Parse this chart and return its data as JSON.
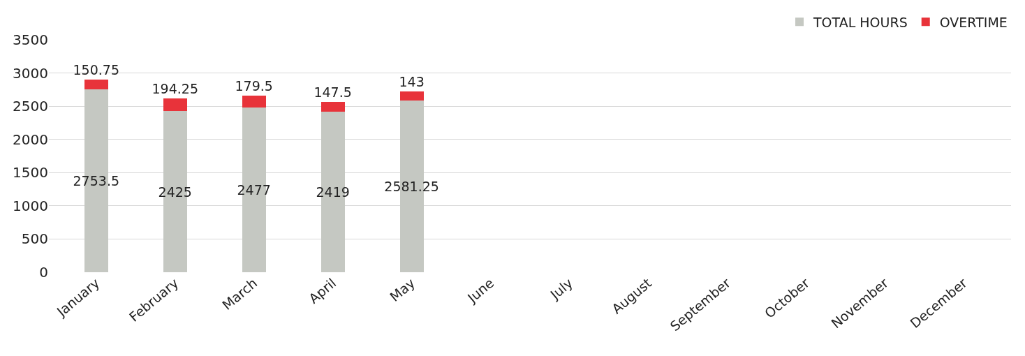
{
  "chart_data": {
    "type": "bar",
    "stacked": true,
    "categories": [
      "January",
      "February",
      "March",
      "April",
      "May",
      "June",
      "July",
      "August",
      "September",
      "October",
      "November",
      "December"
    ],
    "series": [
      {
        "name": "TOTAL HOURS",
        "color": "#c5c8c2",
        "values": [
          2753.5,
          2425,
          2477,
          2419,
          2581.25,
          null,
          null,
          null,
          null,
          null,
          null,
          null
        ]
      },
      {
        "name": "OVERTIME",
        "color": "#e8333a",
        "values": [
          150.75,
          194.25,
          179.5,
          147.5,
          143,
          null,
          null,
          null,
          null,
          null,
          null,
          null
        ]
      }
    ],
    "ylim": [
      0,
      3500
    ],
    "yticks": [
      0,
      500,
      1000,
      1500,
      2000,
      2500,
      3000,
      3500
    ],
    "grid": "y",
    "legend": "top right",
    "data_labels": true
  }
}
